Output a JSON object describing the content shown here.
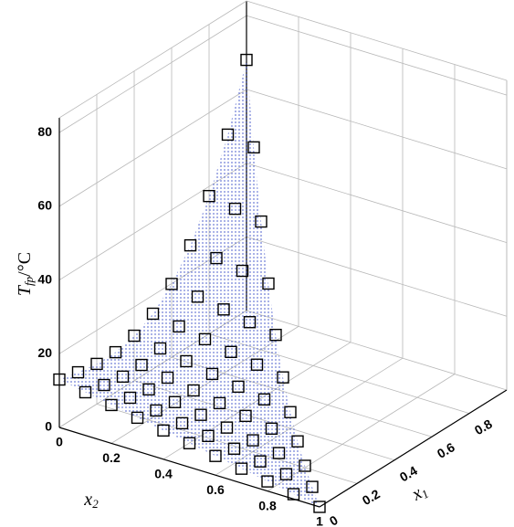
{
  "chart_data": {
    "type": "scatter3d",
    "xlabel": {
      "main": "x",
      "sub": "2"
    },
    "ylabel": {
      "main": "x",
      "sub": "1"
    },
    "zlabel": {
      "main": "T",
      "sub": "fp",
      "rest": "/°C"
    },
    "xlim": [
      0,
      1
    ],
    "xticks": [
      0,
      0.2,
      0.4,
      0.6,
      0.8,
      1
    ],
    "ylim": [
      0,
      1
    ],
    "yticks": [
      0,
      0.2,
      0.4,
      0.6,
      0.8
    ],
    "zlim": [
      0,
      84
    ],
    "zticks": [
      0,
      20,
      40,
      60,
      80
    ],
    "grid": true,
    "surface_color": "#3a4fc8",
    "marker_color": "#000000",
    "x": [
      0,
      0.1,
      0.2,
      0.3,
      0.4,
      0.5,
      0.6,
      0.7,
      0.8,
      0.9,
      1,
      0,
      0.1,
      0.2,
      0.3,
      0.4,
      0.5,
      0.6,
      0.7,
      0.8,
      0.9,
      0,
      0.1,
      0.2,
      0.3,
      0.4,
      0.5,
      0.6,
      0.7,
      0.8,
      0,
      0.1,
      0.2,
      0.3,
      0.4,
      0.5,
      0.6,
      0.7,
      0,
      0.1,
      0.2,
      0.3,
      0.4,
      0.5,
      0.6,
      0,
      0.1,
      0.2,
      0.3,
      0.4,
      0.5,
      0,
      0.1,
      0.2,
      0.3,
      0.4,
      0,
      0.1,
      0.2,
      0.3,
      0,
      0.1,
      0.2,
      0,
      0.1,
      0
    ],
    "y": [
      0,
      0,
      0,
      0,
      0,
      0,
      0,
      0,
      0,
      0,
      0,
      0.1,
      0.1,
      0.1,
      0.1,
      0.1,
      0.1,
      0.1,
      0.1,
      0.1,
      0.1,
      0.2,
      0.2,
      0.2,
      0.2,
      0.2,
      0.2,
      0.2,
      0.2,
      0.2,
      0.3,
      0.3,
      0.3,
      0.3,
      0.3,
      0.3,
      0.3,
      0.3,
      0.4,
      0.4,
      0.4,
      0.4,
      0.4,
      0.4,
      0.4,
      0.5,
      0.5,
      0.5,
      0.5,
      0.5,
      0.5,
      0.6,
      0.6,
      0.6,
      0.6,
      0.6,
      0.7,
      0.7,
      0.7,
      0.7,
      0.8,
      0.8,
      0.8,
      0.9,
      0.9,
      1
    ],
    "z": [
      13,
      11.7,
      10.4,
      9.1,
      7.8,
      6.5,
      5.2,
      3.9,
      2.6,
      1.3,
      0,
      11.8,
      10.5,
      9.2,
      7.9,
      6.6,
      5.3,
      4,
      2.7,
      1.4,
      0.1,
      10.9,
      9.6,
      8.3,
      7,
      5.7,
      4.4,
      3.1,
      1.8,
      0.5,
      10.9,
      9.6,
      8.3,
      7,
      5.7,
      4.4,
      3.1,
      1.8,
      12.2,
      10.9,
      9.6,
      8.3,
      7,
      5.7,
      4.4,
      15,
      13.7,
      12.4,
      11.1,
      9.8,
      8.5,
      19.9,
      18.6,
      17.3,
      16,
      14.7,
      27.2,
      25.9,
      24.6,
      23.3,
      37.4,
      36.1,
      34.8,
      50.9,
      49.6,
      68
    ]
  }
}
